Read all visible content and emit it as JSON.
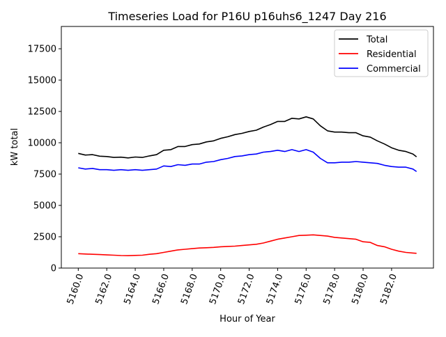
{
  "chart_data": {
    "type": "line",
    "title": "Timeseries Load for P16U p16uhs6_1247  Day 216",
    "xlabel": "Hour of Year",
    "ylabel": "kW total",
    "xlim": [
      5158.81,
      5184.94
    ],
    "ylim": [
      0,
      19280
    ],
    "xticks": [
      5160,
      5162,
      5164,
      5166,
      5168,
      5170,
      5172,
      5174,
      5176,
      5178,
      5180,
      5182
    ],
    "xtick_labels": [
      "5160.0",
      "5162.0",
      "5164.0",
      "5166.0",
      "5168.0",
      "5170.0",
      "5172.0",
      "5174.0",
      "5176.0",
      "5178.0",
      "5180.0",
      "5182.0"
    ],
    "yticks": [
      0,
      2500,
      5000,
      7500,
      10000,
      12500,
      15000,
      17500
    ],
    "ytick_labels": [
      "0",
      "2500",
      "5000",
      "7500",
      "10000",
      "12500",
      "15000",
      "17500"
    ],
    "grid": false,
    "legend_position": "top-right",
    "x": [
      5160,
      5160.5,
      5161,
      5161.5,
      5162,
      5162.5,
      5163,
      5163.5,
      5164,
      5164.5,
      5165,
      5165.5,
      5166,
      5166.5,
      5167,
      5167.5,
      5168,
      5168.5,
      5169,
      5169.5,
      5170,
      5170.5,
      5171,
      5171.5,
      5172,
      5172.5,
      5173,
      5173.5,
      5174,
      5174.5,
      5175,
      5175.5,
      5176,
      5176.5,
      5177,
      5177.5,
      5178,
      5178.5,
      5179,
      5179.5,
      5180,
      5180.5,
      5181,
      5181.5,
      5182,
      5182.5,
      5183,
      5183.5,
      5183.75
    ],
    "series": [
      {
        "name": "Total",
        "color": "#000000",
        "values": [
          9150,
          9020,
          9050,
          8930,
          8900,
          8830,
          8850,
          8790,
          8860,
          8830,
          8950,
          9050,
          9400,
          9450,
          9700,
          9700,
          9850,
          9900,
          10070,
          10150,
          10350,
          10480,
          10650,
          10750,
          10900,
          11000,
          11250,
          11450,
          11700,
          11700,
          11950,
          11900,
          12070,
          11900,
          11350,
          10950,
          10850,
          10850,
          10800,
          10800,
          10550,
          10450,
          10150,
          9900,
          9600,
          9400,
          9300,
          9100,
          8880
        ]
      },
      {
        "name": "Residential",
        "color": "#ff0000",
        "values": [
          1150,
          1120,
          1100,
          1080,
          1050,
          1030,
          1000,
          990,
          1010,
          1030,
          1100,
          1150,
          1250,
          1350,
          1450,
          1500,
          1550,
          1600,
          1620,
          1650,
          1700,
          1730,
          1750,
          1800,
          1850,
          1900,
          2000,
          2150,
          2300,
          2400,
          2500,
          2600,
          2620,
          2650,
          2600,
          2550,
          2450,
          2400,
          2350,
          2300,
          2100,
          2050,
          1800,
          1700,
          1500,
          1350,
          1250,
          1200,
          1180
        ]
      },
      {
        "name": "Commercial",
        "color": "#0000ff",
        "values": [
          8000,
          7900,
          7950,
          7850,
          7850,
          7800,
          7850,
          7800,
          7850,
          7800,
          7850,
          7900,
          8150,
          8100,
          8250,
          8200,
          8300,
          8300,
          8450,
          8500,
          8650,
          8750,
          8900,
          8950,
          9050,
          9100,
          9250,
          9300,
          9400,
          9300,
          9450,
          9300,
          9450,
          9250,
          8750,
          8400,
          8400,
          8450,
          8450,
          8500,
          8450,
          8400,
          8350,
          8200,
          8100,
          8050,
          8050,
          7900,
          7700
        ]
      }
    ]
  }
}
